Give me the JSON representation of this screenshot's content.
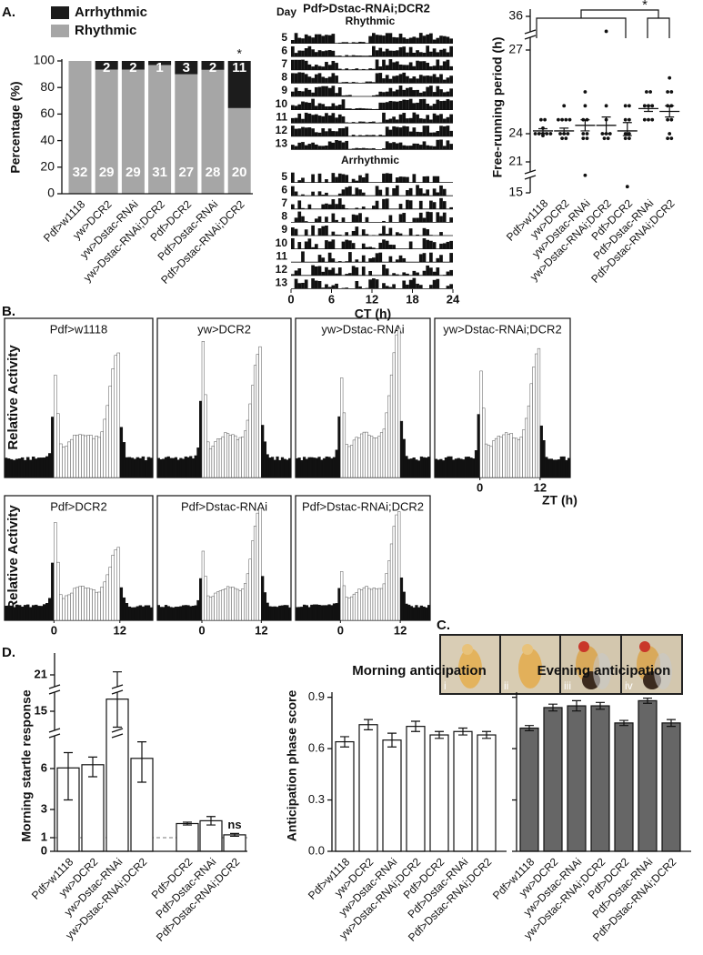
{
  "panel_labels": [
    "A.",
    "B.",
    "C.",
    "D."
  ],
  "photo_labels": [
    "i",
    "ii",
    "iii",
    "iv"
  ],
  "chart_data": [
    {
      "type": "stacked_bar",
      "ylabel": "Percentage (%)",
      "categories": [
        "Pdf>w1118",
        "yw>DCR2",
        "yw>Dstac-RNAi",
        "yw>Dstac-RNAi;DCR2",
        "Pdf>DCR2",
        "Pdf>Dstac-RNAi",
        "Pdf>Dstac-RNAi;DCR2"
      ],
      "ylim": [
        0,
        100
      ],
      "yticks": [
        0,
        20,
        40,
        60,
        80,
        100
      ],
      "series": [
        {
          "name": "Rhythmic",
          "color": "#a6a6a6",
          "values": [
            100,
            93.5,
            93.5,
            96.9,
            90,
            93.3,
            64.5
          ],
          "counts": [
            32,
            29,
            29,
            31,
            27,
            28,
            20
          ]
        },
        {
          "name": "Arrhythmic",
          "color": "#1c1c1c",
          "values": [
            0,
            6.5,
            6.5,
            3.1,
            10,
            6.7,
            35.5
          ],
          "counts": [
            null,
            2,
            2,
            1,
            3,
            2,
            11
          ]
        }
      ],
      "annotation": "*"
    },
    {
      "type": "actogram",
      "title": "Pdf>Dstac-RNAi;DCR2",
      "ylabel": "Day",
      "xlabel": "CT (h)",
      "groups": [
        "Rhythmic",
        "Arrhythmic"
      ],
      "days": [
        5,
        6,
        7,
        8,
        9,
        10,
        11,
        12,
        13
      ],
      "xlim": [
        0,
        24
      ],
      "xticks": [
        0,
        6,
        12,
        18,
        24
      ]
    },
    {
      "type": "dot_plot",
      "ylabel": "Free-running period (h)",
      "categories": [
        "Pdf>w1118",
        "yw>DCR2",
        "yw>Dstac-RNAi",
        "yw>Dstac-RNAi;DCR2",
        "Pdf>DCR2",
        "Pdf>Dstac-RNAi",
        "Pdf>Dstac-RNAi;DCR2"
      ],
      "ylim": [
        15,
        36
      ],
      "yticks": [
        15,
        21,
        24,
        27,
        36
      ],
      "points": [
        [
          24,
          24,
          24,
          24,
          24,
          24.5,
          24.5,
          23.8,
          24.2
        ],
        [
          24.5,
          24.5,
          24.5,
          24,
          24,
          24,
          23.5,
          23.5,
          24.5,
          25
        ],
        [
          25.5,
          25,
          24.5,
          24.5,
          24,
          24,
          23.5,
          23.5,
          18.4
        ],
        [
          32,
          25,
          24.5,
          24,
          24,
          24,
          23.5,
          23.5
        ],
        [
          25,
          24.5,
          24.5,
          24,
          24,
          23.5,
          23.5,
          16.2,
          25
        ],
        [
          25.5,
          25.5,
          25,
          25,
          25,
          24.5,
          24.5,
          24.5
        ],
        [
          26,
          25.5,
          25.5,
          25,
          25,
          24.5,
          24.5,
          24,
          23.5,
          23.5
        ]
      ],
      "values": [
        24.1,
        24.1,
        24.3,
        24.3,
        24.1,
        24.9,
        24.8
      ],
      "errors": [
        0.08,
        0.1,
        0.2,
        0.3,
        0.3,
        0.1,
        0.2
      ],
      "annotation": "*"
    },
    {
      "type": "activity_profile",
      "ylabel": "Relative Activity",
      "xlabel": "ZT (h)",
      "panels": [
        "Pdf>w1118",
        "yw>DCR2",
        "yw>Dstac-RNAi",
        "yw>Dstac-RNAi;DCR2",
        "Pdf>DCR2",
        "Pdf>Dstac-RNAi",
        "Pdf>Dstac-RNAi;DCR2"
      ],
      "xlim": [
        -9,
        18
      ],
      "xticks": [
        0,
        12
      ]
    },
    {
      "type": "bar",
      "ylabel": "Morning startle response",
      "categories": [
        "Pdf>w1118",
        "yw>DCR2",
        "yw>Dstac-RNAi",
        "yw>Dstac-RNAi;DCR2",
        "Pdf>DCR2",
        "Pdf>Dstac-RNAi",
        "Pdf>Dstac-RNAi;DCR2"
      ],
      "values": [
        6.1,
        6.6,
        17,
        7.6,
        2.0,
        2.2,
        1.2
      ],
      "errors": [
        2.4,
        1.2,
        4.5,
        2.6,
        0.1,
        0.3,
        0.1
      ],
      "color": "#ffffff",
      "ylim": [
        0,
        24
      ],
      "yticks": [
        0,
        1,
        3,
        6,
        15,
        21
      ],
      "reference_line": 1,
      "annotation": "ns"
    },
    {
      "type": "bar",
      "title": "Morning anticipation",
      "ylabel": "Anticipation phase score",
      "categories": [
        "Pdf>w1118",
        "yw>DCR2",
        "yw>Dstac-RNAi",
        "yw>Dstac-RNAi;DCR2",
        "Pdf>DCR2",
        "Pdf>Dstac-RNAi",
        "Pdf>Dstac-RNAi;DCR2"
      ],
      "values": [
        0.64,
        0.74,
        0.65,
        0.73,
        0.68,
        0.7,
        0.68
      ],
      "errors": [
        0.03,
        0.03,
        0.04,
        0.03,
        0.02,
        0.02,
        0.02
      ],
      "color": "#ffffff",
      "ylim": [
        0,
        0.93
      ],
      "yticks": [
        {
          "value": 0,
          "label": "0.0"
        },
        0.3,
        0.6,
        0.9
      ]
    },
    {
      "type": "bar",
      "title": "Evening anticipation",
      "categories": [
        "Pdf>w1118",
        "yw>DCR2",
        "yw>Dstac-RNAi",
        "yw>Dstac-RNAi;DCR2",
        "Pdf>DCR2",
        "Pdf>Dstac-RNAi",
        "Pdf>Dstac-RNAi;DCR2"
      ],
      "values": [
        0.72,
        0.84,
        0.85,
        0.85,
        0.75,
        0.88,
        0.75
      ],
      "errors": [
        0.015,
        0.02,
        0.03,
        0.02,
        0.015,
        0.015,
        0.02
      ],
      "color": "#666666",
      "ylim": [
        0,
        0.93
      ],
      "yticks": [
        0,
        0.3,
        0.6,
        0.9
      ]
    }
  ]
}
